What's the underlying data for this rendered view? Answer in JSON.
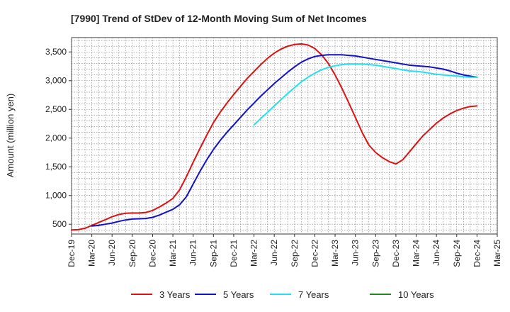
{
  "chart_data": {
    "type": "line",
    "title": "[7990]  Trend of StDev of 12-Month Moving Sum of Net Incomes",
    "xlabel": "",
    "ylabel": "Amount (million yen)",
    "ylim": [
      330,
      3750
    ],
    "yticks": [
      500,
      1000,
      1500,
      2000,
      2500,
      3000,
      3500
    ],
    "ytick_labels": [
      "500",
      "1,000",
      "1,500",
      "2,000",
      "2,500",
      "3,000",
      "3,500"
    ],
    "xticks": [
      "Dec-19",
      "Mar-20",
      "Jun-20",
      "Sep-20",
      "Dec-20",
      "Mar-21",
      "Jun-21",
      "Sep-21",
      "Dec-21",
      "Mar-22",
      "Jun-22",
      "Sep-22",
      "Dec-22",
      "Mar-23",
      "Jun-23",
      "Sep-23",
      "Dec-23",
      "Mar-24",
      "Jun-24",
      "Sep-24",
      "Dec-24",
      "Mar-25"
    ],
    "grid": true,
    "legend_position": "bottom",
    "series": [
      {
        "name": "3 Years",
        "color": "#dd1111",
        "x": [
          "2019-12",
          "2020-01",
          "2020-02",
          "2020-03",
          "2020-04",
          "2020-05",
          "2020-06",
          "2020-07",
          "2020-08",
          "2020-09",
          "2020-10",
          "2020-11",
          "2020-12",
          "2021-01",
          "2021-02",
          "2021-03",
          "2021-04",
          "2021-05",
          "2021-06",
          "2021-07",
          "2021-08",
          "2021-09",
          "2021-10",
          "2021-11",
          "2021-12",
          "2022-01",
          "2022-02",
          "2022-03",
          "2022-04",
          "2022-05",
          "2022-06",
          "2022-07",
          "2022-08",
          "2022-09",
          "2022-10",
          "2022-11",
          "2022-12",
          "2023-01",
          "2023-02",
          "2023-03",
          "2023-04",
          "2023-05",
          "2023-06",
          "2023-07",
          "2023-08",
          "2023-09",
          "2023-10",
          "2023-11",
          "2023-12",
          "2024-01",
          "2024-02",
          "2024-03",
          "2024-04",
          "2024-05",
          "2024-06",
          "2024-07",
          "2024-08",
          "2024-09",
          "2024-10",
          "2024-11",
          "2024-12"
        ],
        "values": [
          400,
          405,
          430,
          480,
          530,
          580,
          630,
          670,
          690,
          695,
          695,
          705,
          740,
          800,
          870,
          950,
          1100,
          1330,
          1580,
          1820,
          2050,
          2270,
          2450,
          2610,
          2760,
          2900,
          3040,
          3160,
          3280,
          3390,
          3480,
          3550,
          3600,
          3630,
          3640,
          3620,
          3560,
          3450,
          3300,
          3100,
          2870,
          2620,
          2360,
          2100,
          1880,
          1750,
          1660,
          1590,
          1550,
          1620,
          1760,
          1900,
          2040,
          2150,
          2260,
          2350,
          2420,
          2480,
          2520,
          2550,
          2560
        ]
      },
      {
        "name": "5 Years",
        "color": "#1111cc",
        "x": [
          "2020-03",
          "2020-04",
          "2020-05",
          "2020-06",
          "2020-07",
          "2020-08",
          "2020-09",
          "2020-10",
          "2020-11",
          "2020-12",
          "2021-01",
          "2021-02",
          "2021-03",
          "2021-04",
          "2021-05",
          "2021-06",
          "2021-07",
          "2021-08",
          "2021-09",
          "2021-10",
          "2021-11",
          "2021-12",
          "2022-01",
          "2022-02",
          "2022-03",
          "2022-04",
          "2022-05",
          "2022-06",
          "2022-07",
          "2022-08",
          "2022-09",
          "2022-10",
          "2022-11",
          "2022-12",
          "2023-01",
          "2023-02",
          "2023-03",
          "2023-04",
          "2023-05",
          "2023-06",
          "2023-07",
          "2023-08",
          "2023-09",
          "2023-10",
          "2023-11",
          "2023-12",
          "2024-01",
          "2024-02",
          "2024-03",
          "2024-04",
          "2024-05",
          "2024-06",
          "2024-07",
          "2024-08",
          "2024-09",
          "2024-10",
          "2024-11",
          "2024-12"
        ],
        "values": [
          470,
          480,
          500,
          520,
          550,
          575,
          590,
          595,
          600,
          620,
          660,
          710,
          760,
          840,
          980,
          1200,
          1420,
          1620,
          1800,
          1960,
          2100,
          2230,
          2360,
          2490,
          2610,
          2730,
          2840,
          2950,
          3050,
          3150,
          3240,
          3320,
          3380,
          3420,
          3440,
          3450,
          3450,
          3450,
          3440,
          3430,
          3410,
          3390,
          3370,
          3350,
          3330,
          3310,
          3290,
          3270,
          3260,
          3250,
          3240,
          3220,
          3200,
          3170,
          3130,
          3100,
          3080,
          3060
        ]
      },
      {
        "name": "7 Years",
        "color": "#22e0f0",
        "x": [
          "2022-03",
          "2022-04",
          "2022-05",
          "2022-06",
          "2022-07",
          "2022-08",
          "2022-09",
          "2022-10",
          "2022-11",
          "2022-12",
          "2023-01",
          "2023-02",
          "2023-03",
          "2023-04",
          "2023-05",
          "2023-06",
          "2023-07",
          "2023-08",
          "2023-09",
          "2023-10",
          "2023-11",
          "2023-12",
          "2024-01",
          "2024-02",
          "2024-03",
          "2024-04",
          "2024-05",
          "2024-06",
          "2024-07",
          "2024-08",
          "2024-09",
          "2024-10",
          "2024-11",
          "2024-12"
        ],
        "values": [
          2230,
          2340,
          2450,
          2560,
          2670,
          2780,
          2880,
          2980,
          3060,
          3130,
          3190,
          3230,
          3260,
          3280,
          3290,
          3290,
          3290,
          3280,
          3270,
          3250,
          3230,
          3210,
          3190,
          3170,
          3160,
          3150,
          3130,
          3110,
          3100,
          3090,
          3080,
          3070,
          3060,
          3060
        ]
      },
      {
        "name": "10 Years",
        "color": "#228822",
        "x": [],
        "values": []
      }
    ]
  }
}
